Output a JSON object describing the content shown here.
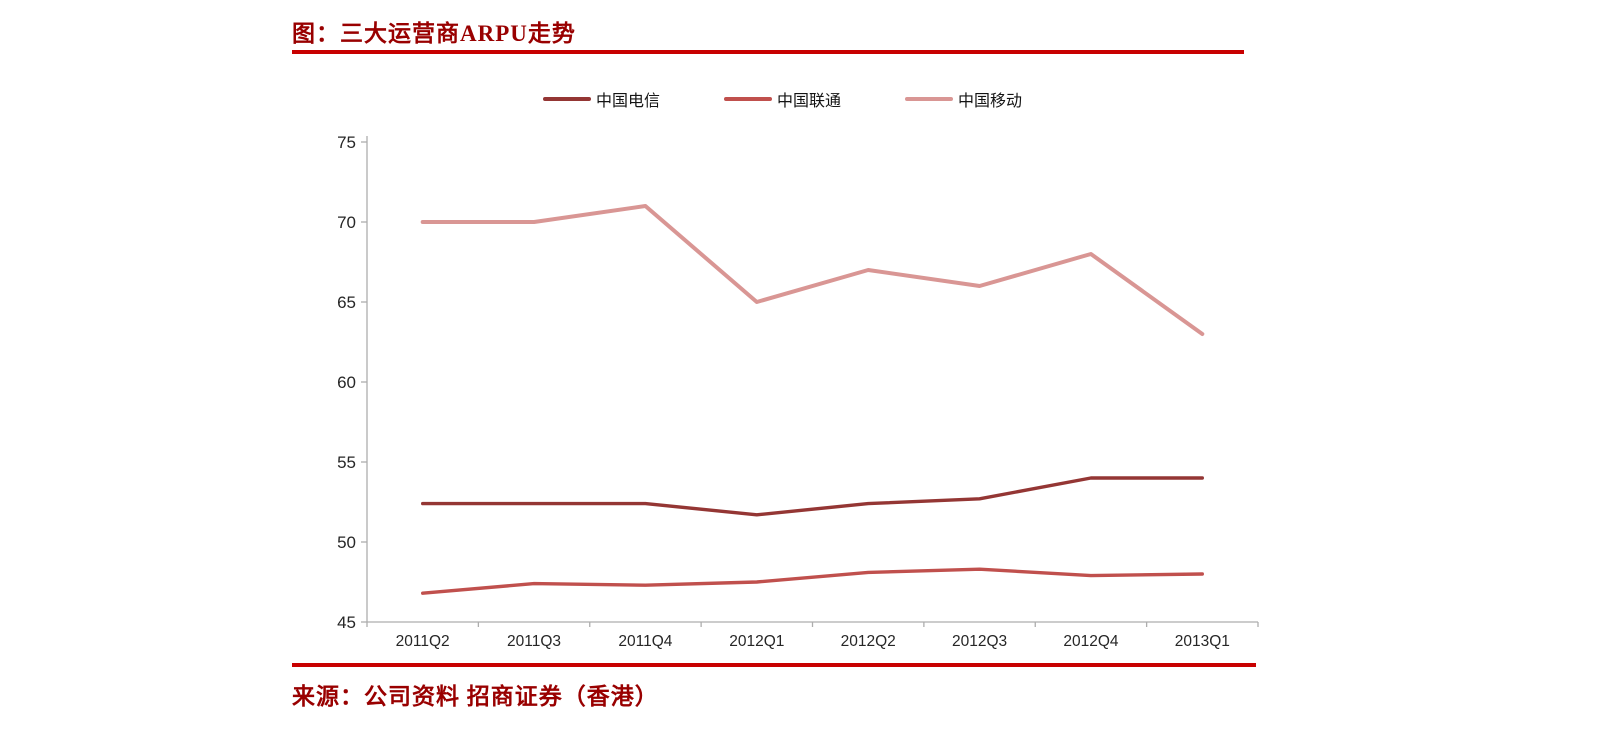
{
  "header": {
    "title": "图：三大运营商ARPU走势"
  },
  "footer": {
    "source": "来源：公司资料 招商证券（香港）"
  },
  "colors": {
    "title_red": "#990000",
    "rule_red": "#C80000",
    "axis_line": "#ADADAD",
    "tick_text": "#262626"
  },
  "chart_data": {
    "type": "line",
    "title": "三大运营商ARPU走势",
    "categories": [
      "2011Q2",
      "2011Q3",
      "2011Q4",
      "2012Q1",
      "2012Q2",
      "2012Q3",
      "2012Q4",
      "2013Q1"
    ],
    "series": [
      {
        "name": "中国电信",
        "color": "#943634",
        "stroke_width": 3.4,
        "values": [
          52.4,
          52.4,
          52.4,
          51.7,
          52.4,
          52.7,
          54.0,
          54.0
        ]
      },
      {
        "name": "中国联通",
        "color": "#C0504D",
        "stroke_width": 3.4,
        "values": [
          46.8,
          47.4,
          47.3,
          47.5,
          48.1,
          48.3,
          47.9,
          48.0
        ]
      },
      {
        "name": "中国移动",
        "color": "#D99694",
        "stroke_width": 4.0,
        "values": [
          70.0,
          70.0,
          71.0,
          65.0,
          67.0,
          66.0,
          68.0,
          63.0
        ]
      }
    ],
    "xlabel": "",
    "ylabel": "",
    "ylim": [
      45,
      75
    ],
    "ytick_step": 5,
    "grid": false,
    "legend_position": "top"
  }
}
